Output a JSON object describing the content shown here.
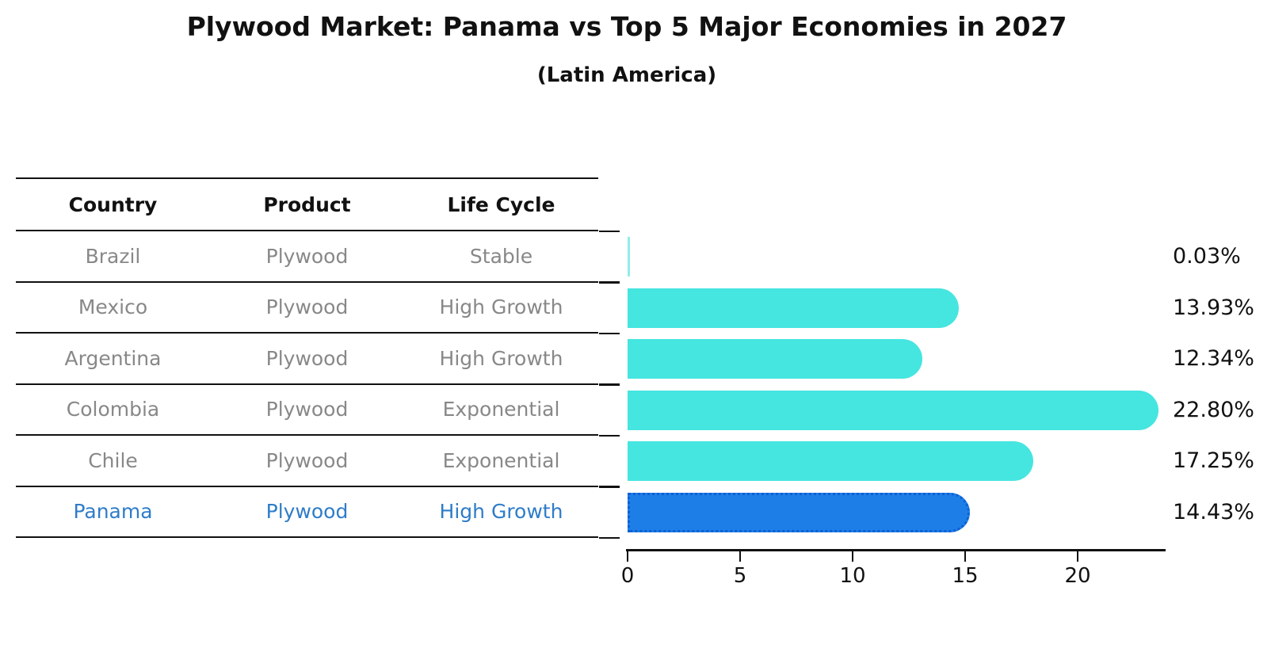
{
  "title": "Plywood Market: Panama vs Top 5 Major Economies in 2027",
  "subtitle": "(Latin America)",
  "table": {
    "headers": [
      "Country",
      "Product",
      "Life Cycle"
    ],
    "rows": [
      {
        "country": "Brazil",
        "product": "Plywood",
        "life_cycle": "Stable",
        "highlight": false
      },
      {
        "country": "Mexico",
        "product": "Plywood",
        "life_cycle": "High Growth",
        "highlight": false
      },
      {
        "country": "Argentina",
        "product": "Plywood",
        "life_cycle": "High Growth",
        "highlight": false
      },
      {
        "country": "Colombia",
        "product": "Plywood",
        "life_cycle": "Exponential",
        "highlight": false
      },
      {
        "country": "Chile",
        "product": "Plywood",
        "life_cycle": "Exponential",
        "highlight": false
      },
      {
        "country": "Panama",
        "product": "Plywood",
        "life_cycle": "High Growth",
        "highlight": true
      }
    ]
  },
  "chart_data": {
    "type": "bar",
    "orientation": "horizontal",
    "categories": [
      "Brazil",
      "Mexico",
      "Argentina",
      "Colombia",
      "Chile",
      "Panama"
    ],
    "values": [
      0.03,
      13.93,
      12.34,
      22.8,
      17.25,
      14.43
    ],
    "value_labels": [
      "0.03%",
      "13.93%",
      "12.34%",
      "22.80%",
      "17.25%",
      "14.43%"
    ],
    "x_ticks": [
      0,
      5,
      10,
      15,
      20
    ],
    "xlim": [
      0,
      23.9
    ],
    "grid": false,
    "legend": "none",
    "highlight_index": 5,
    "title": "Plywood Market: Panama vs Top 5 Major Economies in 2027",
    "subtitle": "(Latin America)"
  },
  "colors": {
    "bar": "#45e5e0",
    "highlight_bar": "#1e7ee8",
    "highlight_text": "#2e7cc9",
    "row_text": "#888888",
    "axis": "#111111"
  }
}
